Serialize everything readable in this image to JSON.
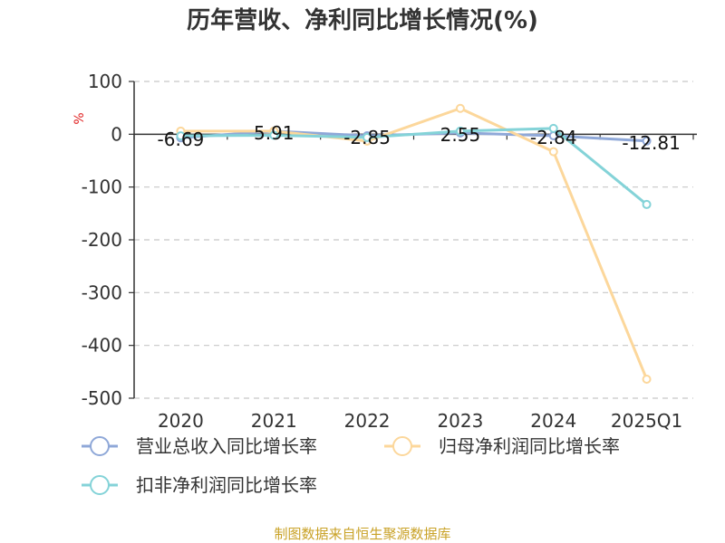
{
  "chart_data": {
    "type": "line",
    "title": "历年营收、净利同比增长情况(%)",
    "ylabel": "%",
    "categories": [
      "2020",
      "2021",
      "2022",
      "2023",
      "2024",
      "2025Q1"
    ],
    "ylim": [
      -500,
      100
    ],
    "yticks": [
      100,
      0,
      -100,
      -200,
      -300,
      -400,
      -500
    ],
    "grid": true,
    "legend_position": "bottom",
    "series": [
      {
        "name": "营业总收入同比增长率",
        "color": "#8fa8d8",
        "values": [
          -6.69,
          5.91,
          -2.85,
          2.55,
          -2.84,
          -12.81
        ],
        "show_labels": true
      },
      {
        "name": "归母净利润同比增长率",
        "color": "#fcd79b",
        "values": [
          6,
          6,
          -13,
          49,
          -33,
          -464
        ]
      },
      {
        "name": "扣非净利润同比增长率",
        "color": "#84d3d8",
        "values": [
          -3,
          -2,
          -6,
          6,
          11,
          -133
        ]
      }
    ],
    "data_labels": [
      "-6.69",
      "5.91",
      "-2.85",
      "2.55",
      "-2.84",
      "-12.81"
    ]
  },
  "source": "制图数据来自恒生聚源数据库"
}
